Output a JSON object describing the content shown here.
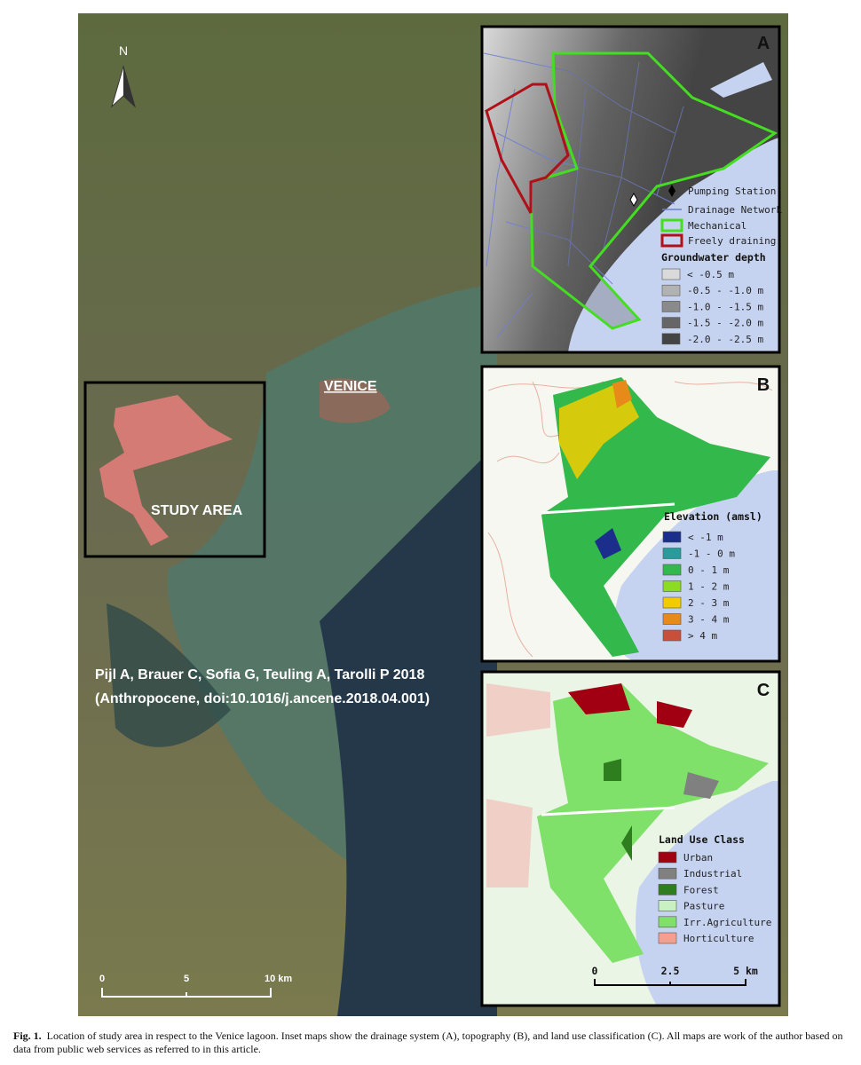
{
  "map": {
    "north": "N",
    "city": "VENICE",
    "study_area": "STUDY AREA",
    "citation": [
      "Pijl A, Brauer C, Sofia G, Teuling A, Tarolli P 2018",
      "(Anthropocene, doi:10.1016/j.ancene.2018.04.001)"
    ],
    "scale": [
      "0",
      "5",
      "10 km"
    ]
  },
  "panels": [
    {
      "letter": "A",
      "items": [
        "Pumping Station",
        "Drainage Network",
        "Mechanical",
        "Freely draining"
      ],
      "legend_title": "Groundwater depth",
      "classes": [
        {
          "label": "< -0.5 m",
          "color": "#dadada"
        },
        {
          "label": "-0.5 - -1.0 m",
          "color": "#b2b2b2"
        },
        {
          "label": "-1.0 - -1.5 m",
          "color": "#8a8a8a"
        },
        {
          "label": "-1.5 - -2.0 m",
          "color": "#666666"
        },
        {
          "label": "-2.0 - -2.5 m",
          "color": "#444444"
        }
      ]
    },
    {
      "letter": "B",
      "legend_title": "Elevation (amsl)",
      "classes": [
        {
          "label": "< -1 m",
          "color": "#1b2e8c"
        },
        {
          "label": "-1 - 0 m",
          "color": "#2b9a9c"
        },
        {
          "label": "0 - 1 m",
          "color": "#33b84c"
        },
        {
          "label": "1 - 2 m",
          "color": "#8cdc22"
        },
        {
          "label": "2 - 3 m",
          "color": "#f2cc00"
        },
        {
          "label": "3 - 4 m",
          "color": "#e88a1a"
        },
        {
          "label": "> 4 m",
          "color": "#c8503a"
        }
      ]
    },
    {
      "letter": "C",
      "legend_title": "Land Use Class",
      "classes": [
        {
          "label": "Urban",
          "color": "#a00012"
        },
        {
          "label": "Industrial",
          "color": "#808080"
        },
        {
          "label": "Forest",
          "color": "#2e7d1e"
        },
        {
          "label": "Pasture",
          "color": "#c8f0c0"
        },
        {
          "label": "Irr.Agriculture",
          "color": "#7fe06a"
        },
        {
          "label": "Horticulture",
          "color": "#f4a090"
        }
      ],
      "scale": [
        "0",
        "2.5",
        "5 km"
      ]
    }
  ],
  "caption": {
    "label": "Fig. 1.",
    "text": "Location of study area in respect to the Venice lagoon. Inset maps show the drainage system (A), topography (B), and land use classification (C). All maps are work of the author based on data from public web services as referred to in this article."
  }
}
